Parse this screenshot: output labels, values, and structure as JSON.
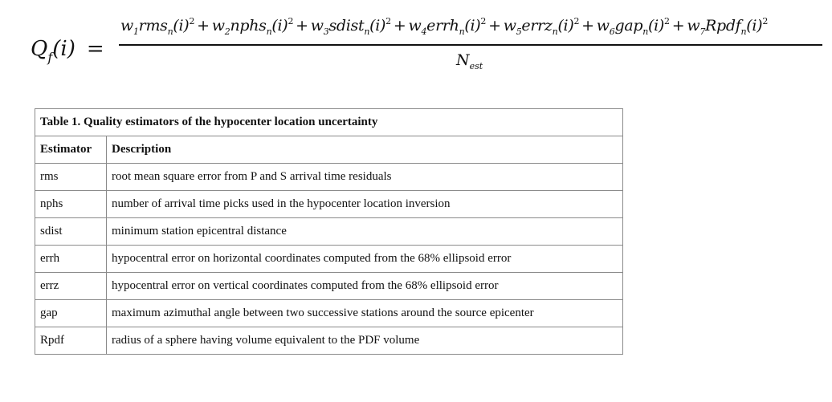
{
  "formula": {
    "lhs_symbol": "Q",
    "lhs_sub": "f",
    "lhs_arg": "(i)",
    "equals": "=",
    "terms": [
      {
        "w": "w",
        "wsub": "1",
        "name": "rms",
        "sub": "n",
        "arg": "(i)",
        "exp": "2"
      },
      {
        "w": "w",
        "wsub": "2",
        "name": "nphs",
        "sub": "n",
        "arg": "(i)",
        "exp": "2"
      },
      {
        "w": "w",
        "wsub": "3",
        "name": "sdist",
        "sub": "n",
        "arg": "(i)",
        "exp": "2"
      },
      {
        "w": "w",
        "wsub": "4",
        "name": "errh",
        "sub": "n",
        "arg": "(i)",
        "exp": "2"
      },
      {
        "w": "w",
        "wsub": "5",
        "name": "errz",
        "sub": "n",
        "arg": "(i)",
        "exp": "2"
      },
      {
        "w": "w",
        "wsub": "6",
        "name": "gap",
        "sub": "n",
        "arg": "(i)",
        "exp": "2"
      },
      {
        "w": "w",
        "wsub": "7",
        "name": "Rpdf",
        "sub": "n",
        "arg": "(i)",
        "exp": "2"
      }
    ],
    "plus": "+",
    "denominator": "N",
    "denominator_sub": "est"
  },
  "table": {
    "caption": "Table 1. Quality estimators of the hypocenter location uncertainty",
    "headers": [
      "Estimator",
      "Description"
    ],
    "rows": [
      [
        "rms",
        "root mean square error from P and S arrival time residuals"
      ],
      [
        "nphs",
        "number of arrival time picks used in the hypocenter location inversion"
      ],
      [
        "sdist",
        "minimum station epicentral distance"
      ],
      [
        "errh",
        "hypocentral error on horizontal coordinates computed from the 68% ellipsoid error"
      ],
      [
        "errz",
        "hypocentral error on vertical coordinates computed from the 68% ellipsoid error"
      ],
      [
        "gap",
        "maximum azimuthal angle between two successive stations around the source epicenter"
      ],
      [
        "Rpdf",
        "radius of a sphere having volume equivalent to  the PDF volume"
      ]
    ]
  }
}
